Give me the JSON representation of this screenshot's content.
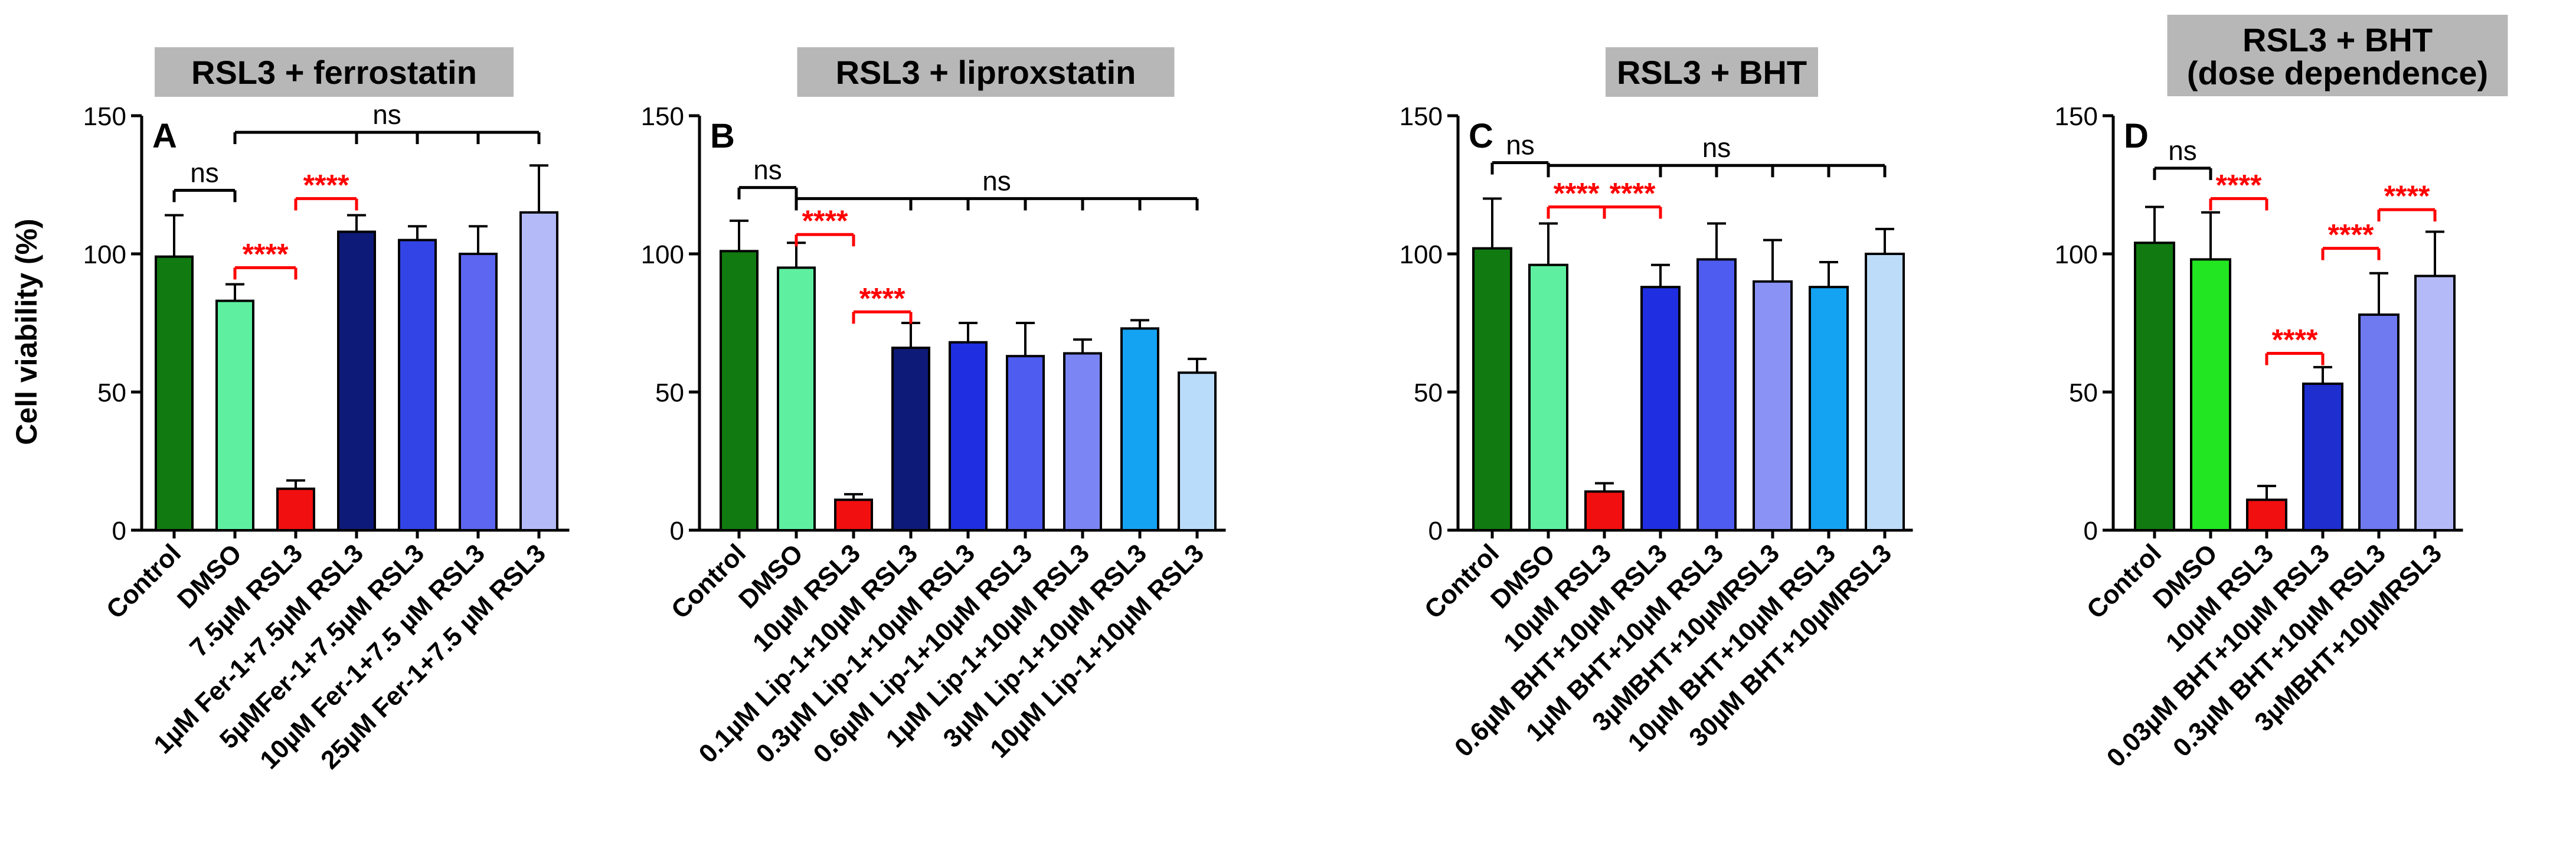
{
  "figure": {
    "ylabel": "Cell viability (%)",
    "yticks": [
      0,
      50,
      100,
      150
    ],
    "ylim": [
      0,
      150
    ]
  },
  "chart_data": [
    {
      "type": "bar",
      "panel": "A",
      "title": "RSL3 + ferrostatin",
      "ylabel": "Cell viability (%)",
      "ylim": [
        0,
        150
      ],
      "categories": [
        "Control",
        "DMSO",
        "7.5µM RSL3",
        "1µM Fer-1+7.5µM RSL3",
        "5µMFer-1+7.5µM RSL3",
        "10µM Fer-1+7.5 µM RSL3",
        "25µM Fer-1+7.5 µM RSL3"
      ],
      "values": [
        99,
        83,
        15,
        108,
        105,
        100,
        115
      ],
      "errors": [
        15,
        6,
        3,
        6,
        5,
        10,
        17
      ],
      "colors": [
        "#117a11",
        "#5ef0a0",
        "#f20f0f",
        "#0d1a78",
        "#3344e6",
        "#5c66f0",
        "#b4b9f8"
      ],
      "annotations": [
        {
          "from": 0,
          "to": 1,
          "y": 123,
          "label": "ns",
          "color": "#000000",
          "ticks": []
        },
        {
          "from": 1,
          "to": 2,
          "y": 95,
          "label": "****",
          "color": "#ff0000",
          "ticks": []
        },
        {
          "from": 2,
          "to": 3,
          "y": 120,
          "label": "****",
          "color": "#ff0000",
          "ticks": []
        },
        {
          "from": 1,
          "to": 6,
          "y": 144,
          "label": "ns",
          "color": "#000000",
          "ticks": [
            3,
            4,
            5
          ]
        }
      ]
    },
    {
      "type": "bar",
      "panel": "B",
      "title": "RSL3 + liproxstatin",
      "ylabel": "Cell viability (%)",
      "ylim": [
        0,
        150
      ],
      "categories": [
        "Control",
        "DMSO",
        "10µM RSL3",
        "0.1µM Lip-1+10µM RSL3",
        "0.3µM Lip-1+10µM RSL3",
        "0.6µM Lip-1+10µM RSL3",
        "1µM Lip-1+10µM RSL3",
        "3µM Lip-1+10µM RSL3",
        "10µM Lip-1+10µM RSL3"
      ],
      "values": [
        101,
        95,
        11,
        66,
        68,
        63,
        64,
        73,
        57
      ],
      "errors": [
        11,
        9,
        2,
        9,
        7,
        12,
        5,
        3,
        5
      ],
      "colors": [
        "#117a11",
        "#5ef0a0",
        "#f20f0f",
        "#0d1a78",
        "#1f2ee0",
        "#4f5cf0",
        "#7b86f4",
        "#14a3f2",
        "#b9dcfa"
      ],
      "annotations": [
        {
          "from": 0,
          "to": 1,
          "y": 124,
          "label": "ns",
          "color": "#000000",
          "ticks": []
        },
        {
          "from": 1,
          "to": 8,
          "y": 120,
          "label": "ns",
          "color": "#000000",
          "ticks": [
            3,
            4,
            5,
            6,
            7
          ]
        },
        {
          "from": 1,
          "to": 2,
          "y": 107,
          "label": "****",
          "color": "#ff0000",
          "ticks": []
        },
        {
          "from": 2,
          "to": 3,
          "y": 79,
          "label": "****",
          "color": "#ff0000",
          "ticks": []
        }
      ]
    },
    {
      "type": "bar",
      "panel": "C",
      "title": "RSL3 + BHT",
      "ylabel": "Cell viability (%)",
      "ylim": [
        0,
        150
      ],
      "categories": [
        "Control",
        "DMSO",
        "10µM RSL3",
        "0.6µM BHT+10µM RSL3",
        "1µM BHT+10µM RSL3",
        "3µMBHT+10µMRSL3",
        "10µM BHT+10µM RSL3",
        "30µM BHT+10µMRSL3"
      ],
      "values": [
        102,
        96,
        14,
        88,
        98,
        90,
        88,
        100
      ],
      "errors": [
        18,
        15,
        3,
        8,
        13,
        15,
        9,
        9
      ],
      "colors": [
        "#117a11",
        "#5ef0a0",
        "#f20f0f",
        "#1f2ee0",
        "#4f5cf0",
        "#8a93f5",
        "#14a3f2",
        "#bcdcfa"
      ],
      "annotations": [
        {
          "from": 0,
          "to": 1,
          "y": 133,
          "label": "ns",
          "color": "#000000",
          "ticks": []
        },
        {
          "from": 1,
          "to": 7,
          "y": 132,
          "label": "ns",
          "color": "#000000",
          "ticks": [
            3,
            4,
            5,
            6
          ]
        },
        {
          "from": 1,
          "to": 2,
          "y": 117,
          "label": "****",
          "color": "#ff0000",
          "ticks": []
        },
        {
          "from": 2,
          "to": 3,
          "y": 117,
          "label": "****",
          "color": "#ff0000",
          "ticks": []
        }
      ]
    },
    {
      "type": "bar",
      "panel": "D",
      "title": "RSL3 + BHT\n(dose dependence)",
      "ylabel": "Cell viability (%)",
      "ylim": [
        0,
        150
      ],
      "categories": [
        "Control",
        "DMSO",
        "10µM RSL3",
        "0.03µM BHT+10µM RSL3",
        "0.3µM BHT+10µM RSL3",
        "3µMBHT+10µMRSL3"
      ],
      "values": [
        104,
        98,
        11,
        53,
        78,
        92
      ],
      "errors": [
        13,
        17,
        5,
        6,
        15,
        16
      ],
      "colors": [
        "#117a11",
        "#22e622",
        "#f20f0f",
        "#1f2ecf",
        "#6f79f0",
        "#b4b9f8"
      ],
      "annotations": [
        {
          "from": 0,
          "to": 1,
          "y": 131,
          "label": "ns",
          "color": "#000000",
          "ticks": []
        },
        {
          "from": 1,
          "to": 2,
          "y": 120,
          "label": "****",
          "color": "#ff0000",
          "ticks": []
        },
        {
          "from": 2,
          "to": 3,
          "y": 64,
          "label": "****",
          "color": "#ff0000",
          "ticks": []
        },
        {
          "from": 3,
          "to": 4,
          "y": 102,
          "label": "****",
          "color": "#ff0000",
          "ticks": []
        },
        {
          "from": 4,
          "to": 5,
          "y": 116,
          "label": "****",
          "color": "#ff0000",
          "ticks": []
        }
      ]
    }
  ]
}
